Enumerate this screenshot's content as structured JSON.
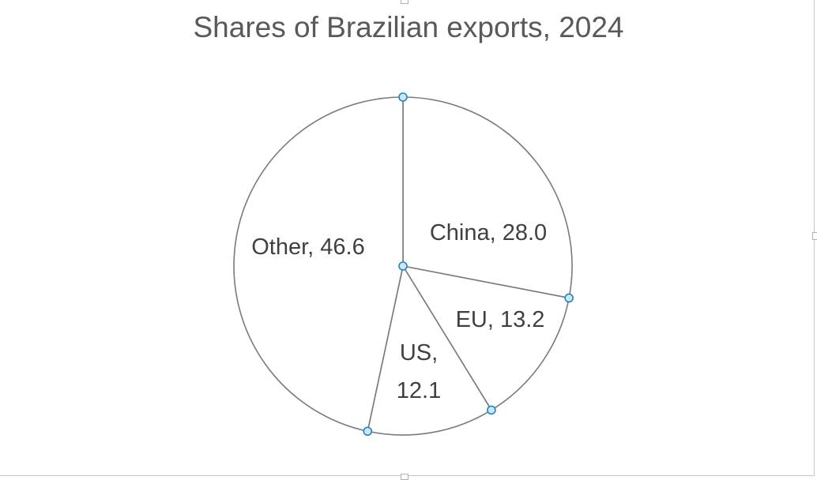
{
  "chart_data": {
    "type": "pie",
    "title": "Shares of Brazilian exports, 2024",
    "slices": [
      {
        "label": "China",
        "value": 28.0,
        "label_lines": [
          "China, 28.0"
        ]
      },
      {
        "label": "EU",
        "value": 13.2,
        "label_lines": [
          "EU, 13.2"
        ]
      },
      {
        "label": "US",
        "value": 12.1,
        "label_lines": [
          "US,",
          "12.1"
        ]
      },
      {
        "label": "Other",
        "value": 46.6,
        "label_lines": [
          "Other, 46.6"
        ]
      }
    ],
    "slice_fill": "#ffffff",
    "slice_stroke": "#7a7a7a",
    "selection_handle_color": "#1e86c6",
    "legend": "none"
  }
}
